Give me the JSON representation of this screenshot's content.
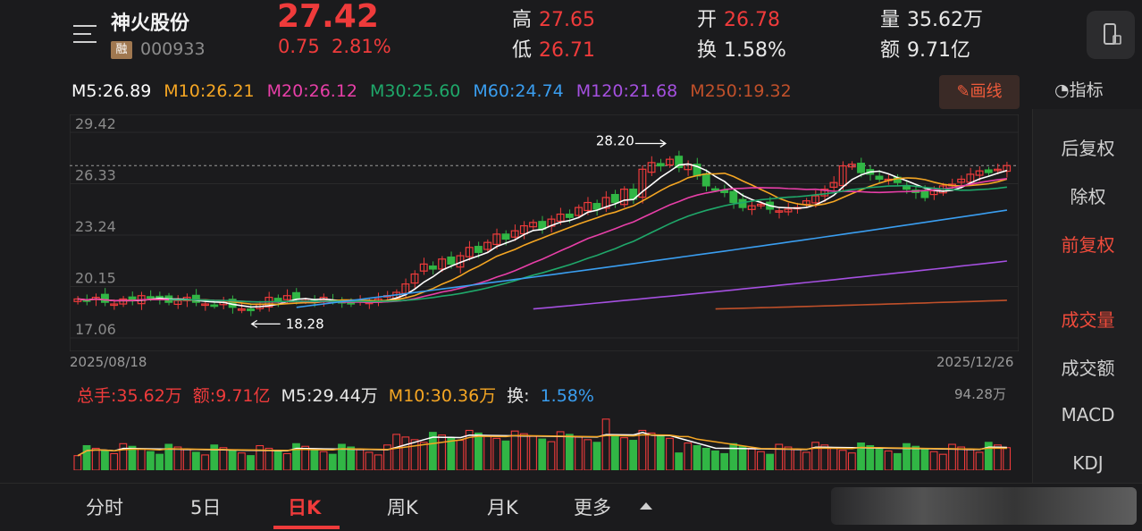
{
  "header": {
    "stock_name": "神火股份",
    "badge": "融",
    "stock_code": "000933",
    "price": "27.42",
    "change": "0.75",
    "change_pct": "2.81%",
    "stats": {
      "high_label": "高",
      "high_value": "27.65",
      "low_label": "低",
      "low_value": "26.71",
      "open_label": "开",
      "open_value": "26.78",
      "turnover_label": "换",
      "turnover_value": "1.58%",
      "volume_label": "量",
      "volume_value": "35.62万",
      "amount_label": "额",
      "amount_value": "9.71亿"
    }
  },
  "ma_legend": {
    "m5": "M5:26.89",
    "m10": "M10:26.21",
    "m20": "M20:26.12",
    "m30": "M30:25.60",
    "m60": "M60:24.74",
    "m120": "M120:21.68",
    "m250": "M250:19.32"
  },
  "draw_button": "画线",
  "indicator_label": "指标",
  "side_panel": [
    "后复权",
    "除权",
    "前复权",
    "成交量",
    "成交额",
    "MACD",
    "KDJ"
  ],
  "chart": {
    "y_ticks": [
      "29.42",
      "26.33",
      "23.24",
      "20.15",
      "17.06"
    ],
    "date_start": "2025/08/18",
    "date_end": "2025/12/26",
    "max_annotation": "28.20",
    "min_annotation": "18.28"
  },
  "volume": {
    "total": "总手:35.62万",
    "amount": "额:9.71亿",
    "m5": "M5:29.44万",
    "m10": "M10:30.36万",
    "turnover_label": "换:",
    "turnover_value": "1.58%",
    "max": "94.28万"
  },
  "tabs": [
    "分时",
    "5日",
    "日K",
    "周K",
    "月K",
    "更多"
  ],
  "colors": {
    "up": "#ef3b3b",
    "down": "#31b645",
    "m5": "#ffffff",
    "m10": "#f5a623",
    "m20": "#e83fa8",
    "m30": "#1fa86a",
    "m60": "#3a9ef0",
    "m120": "#a550e0",
    "m250": "#c0502a"
  },
  "chart_data": {
    "type": "candlestick",
    "x_range": [
      "2025/08/18",
      "2025/12/26"
    ],
    "ylim": [
      17.06,
      29.42
    ],
    "y_ticks": [
      29.42,
      26.33,
      23.24,
      20.15,
      17.06
    ],
    "annotations": [
      {
        "text": "28.20"
      },
      {
        "text": "18.28"
      }
    ],
    "candles_approx_close": [
      19.4,
      19.3,
      19.5,
      19.2,
      19.1,
      19.4,
      19.3,
      19.6,
      19.5,
      19.4,
      19.2,
      19.3,
      19.5,
      19.2,
      19.1,
      19.0,
      19.2,
      18.9,
      18.8,
      18.7,
      19.1,
      19.5,
      19.3,
      19.6,
      19.4,
      19.3,
      19.2,
      19.5,
      19.3,
      19.2,
      19.1,
      19.3,
      19.2,
      19.4,
      19.6,
      19.8,
      20.3,
      20.9,
      21.5,
      21.2,
      21.8,
      21.5,
      22.0,
      22.5,
      22.2,
      22.8,
      23.3,
      23.0,
      23.5,
      23.8,
      24.0,
      23.6,
      24.2,
      24.5,
      24.3,
      24.9,
      25.2,
      24.8,
      25.5,
      25.2,
      26.0,
      25.4,
      27.2,
      27.6,
      27.4,
      27.8,
      27.3,
      27.5,
      26.8,
      26.2,
      26.0,
      25.8,
      25.2,
      24.9,
      25.0,
      25.1,
      24.8,
      24.7,
      24.8,
      24.9,
      25.3,
      25.6,
      26.0,
      26.4,
      27.4,
      27.5,
      27.0,
      26.9,
      26.6,
      26.6,
      26.4,
      26.0,
      25.8,
      25.5,
      25.9,
      26.2,
      26.3,
      26.6,
      26.9,
      27.1,
      27.0,
      27.2,
      27.42
    ],
    "volume_ylim": [
      0,
      94.28
    ],
    "ma_latest": {
      "M5": 26.89,
      "M10": 26.21,
      "M20": 26.12,
      "M30": 25.6,
      "M60": 24.74,
      "M120": 21.68,
      "M250": 19.32
    },
    "volume_ma_latest": {
      "M5": 29.44,
      "M10": 30.36
    }
  }
}
